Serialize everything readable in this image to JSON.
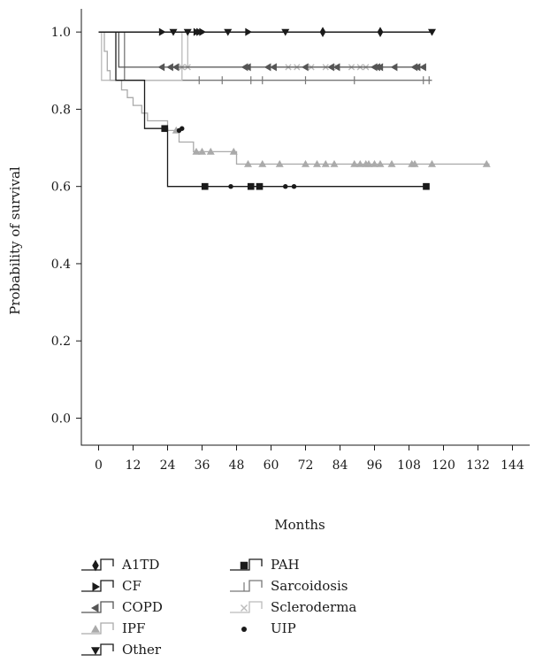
{
  "chart_data": {
    "type": "line",
    "subtype": "kaplan-meier",
    "title": "",
    "xlabel": "Months",
    "ylabel": "Probability of survival",
    "xlim": [
      -6,
      150
    ],
    "ylim": [
      -0.07,
      1.06
    ],
    "x_ticks": [
      0,
      12,
      24,
      36,
      48,
      60,
      72,
      84,
      96,
      108,
      120,
      132,
      144
    ],
    "y_ticks": [
      0.0,
      0.2,
      0.4,
      0.6,
      0.8,
      1.0
    ],
    "y_tick_labels": [
      "0.0",
      "0.2",
      "0.4",
      "0.6",
      "0.8",
      "1.0"
    ],
    "grid": false,
    "legend_position": "bottom",
    "series": [
      {
        "name": "A1TD",
        "color": "#1a1a1a",
        "marker": "diamond",
        "steps": [
          [
            0,
            1.0
          ],
          [
            116,
            1.0
          ]
        ],
        "censored": [
          [
            78,
            1.0
          ],
          [
            98,
            1.0
          ]
        ]
      },
      {
        "name": "CF",
        "color": "#1a1a1a",
        "marker": "triangle-right",
        "steps": [
          [
            0,
            1.0
          ],
          [
            116,
            1.0
          ]
        ],
        "censored": [
          [
            22,
            1.0
          ],
          [
            34,
            1.0
          ],
          [
            35,
            1.0
          ],
          [
            36,
            1.0
          ],
          [
            52,
            1.0
          ]
        ]
      },
      {
        "name": "COPD",
        "color": "#555555",
        "marker": "triangle-left",
        "steps": [
          [
            0,
            1.0
          ],
          [
            7,
            1.0
          ],
          [
            7,
            0.909
          ],
          [
            114,
            0.909
          ]
        ],
        "censored": [
          [
            22,
            0.909
          ],
          [
            25,
            0.909
          ],
          [
            27,
            0.909
          ],
          [
            51,
            0.909
          ],
          [
            52,
            0.909
          ],
          [
            59,
            0.909
          ],
          [
            61,
            0.909
          ],
          [
            72,
            0.909
          ],
          [
            81,
            0.909
          ],
          [
            83,
            0.909
          ],
          [
            96,
            0.909
          ],
          [
            97,
            0.909
          ],
          [
            98,
            0.909
          ],
          [
            103,
            0.909
          ],
          [
            110,
            0.909
          ],
          [
            111,
            0.909
          ],
          [
            113,
            0.909
          ]
        ]
      },
      {
        "name": "IPF",
        "color": "#aaaaaa",
        "marker": "triangle-up",
        "steps": [
          [
            0,
            1.0
          ],
          [
            2,
            1.0
          ],
          [
            2,
            0.95
          ],
          [
            3,
            0.95
          ],
          [
            3,
            0.9
          ],
          [
            4,
            0.9
          ],
          [
            4,
            0.875
          ],
          [
            8,
            0.875
          ],
          [
            8,
            0.85
          ],
          [
            10,
            0.85
          ],
          [
            10,
            0.83
          ],
          [
            12,
            0.83
          ],
          [
            12,
            0.81
          ],
          [
            15,
            0.81
          ],
          [
            15,
            0.79
          ],
          [
            17,
            0.79
          ],
          [
            17,
            0.77
          ],
          [
            24,
            0.77
          ],
          [
            24,
            0.745
          ],
          [
            28,
            0.745
          ],
          [
            28,
            0.715
          ],
          [
            33,
            0.715
          ],
          [
            33,
            0.69
          ],
          [
            48,
            0.69
          ],
          [
            48,
            0.658
          ],
          [
            136,
            0.658
          ]
        ],
        "censored": [
          [
            27,
            0.745
          ],
          [
            34,
            0.69
          ],
          [
            36,
            0.69
          ],
          [
            39,
            0.69
          ],
          [
            47,
            0.69
          ],
          [
            52,
            0.658
          ],
          [
            57,
            0.658
          ],
          [
            63,
            0.658
          ],
          [
            72,
            0.658
          ],
          [
            76,
            0.658
          ],
          [
            79,
            0.658
          ],
          [
            82,
            0.658
          ],
          [
            89,
            0.658
          ],
          [
            91,
            0.658
          ],
          [
            93,
            0.658
          ],
          [
            94,
            0.658
          ],
          [
            96,
            0.658
          ],
          [
            98,
            0.658
          ],
          [
            102,
            0.658
          ],
          [
            109,
            0.658
          ],
          [
            110,
            0.658
          ],
          [
            116,
            0.658
          ],
          [
            135,
            0.658
          ]
        ]
      },
      {
        "name": "Other",
        "color": "#1a1a1a",
        "marker": "triangle-down",
        "steps": [
          [
            0,
            1.0
          ],
          [
            116,
            1.0
          ]
        ],
        "censored": [
          [
            26,
            1.0
          ],
          [
            31,
            1.0
          ],
          [
            45,
            1.0
          ],
          [
            65,
            1.0
          ],
          [
            116,
            1.0
          ]
        ]
      },
      {
        "name": "PAH",
        "color": "#1a1a1a",
        "marker": "square",
        "steps": [
          [
            0,
            1.0
          ],
          [
            6,
            1.0
          ],
          [
            6,
            0.875
          ],
          [
            16,
            0.875
          ],
          [
            16,
            0.75
          ],
          [
            24,
            0.75
          ],
          [
            24,
            0.6
          ],
          [
            115,
            0.6
          ]
        ],
        "censored": [
          [
            23,
            0.75
          ],
          [
            37,
            0.6
          ],
          [
            53,
            0.6
          ],
          [
            56,
            0.6
          ],
          [
            114,
            0.6
          ]
        ]
      },
      {
        "name": "Sarcoidosis",
        "color": "#777777",
        "marker": "tick",
        "steps": [
          [
            0,
            1.0
          ],
          [
            9,
            1.0
          ],
          [
            9,
            0.875
          ],
          [
            116,
            0.875
          ]
        ],
        "censored": [
          [
            35,
            0.875
          ],
          [
            43,
            0.875
          ],
          [
            53,
            0.875
          ],
          [
            57,
            0.875
          ],
          [
            72,
            0.875
          ],
          [
            89,
            0.875
          ],
          [
            113,
            0.875
          ],
          [
            115,
            0.875
          ]
        ]
      },
      {
        "name": "Scleroderma",
        "color": "#bbbbbb",
        "marker": "x",
        "steps": [
          [
            0,
            1.0
          ],
          [
            1,
            1.0
          ],
          [
            1,
            0.875
          ],
          [
            29,
            0.875
          ],
          [
            29,
            1.0
          ],
          [
            31,
            1.0
          ],
          [
            31,
            0.909
          ],
          [
            114,
            0.909
          ]
        ],
        "censored": [
          [
            29,
            0.909
          ],
          [
            31,
            0.909
          ],
          [
            66,
            0.909
          ],
          [
            69,
            0.909
          ],
          [
            74,
            0.909
          ],
          [
            79,
            0.909
          ],
          [
            83,
            0.909
          ],
          [
            88,
            0.909
          ],
          [
            91,
            0.909
          ],
          [
            93,
            0.909
          ]
        ]
      },
      {
        "name": "UIP",
        "color": "#1a1a1a",
        "marker": "dot",
        "steps": [],
        "censored": [
          [
            28,
            0.745
          ],
          [
            29,
            0.75
          ],
          [
            46,
            0.6
          ],
          [
            65,
            0.6
          ],
          [
            68,
            0.6
          ]
        ]
      }
    ]
  }
}
